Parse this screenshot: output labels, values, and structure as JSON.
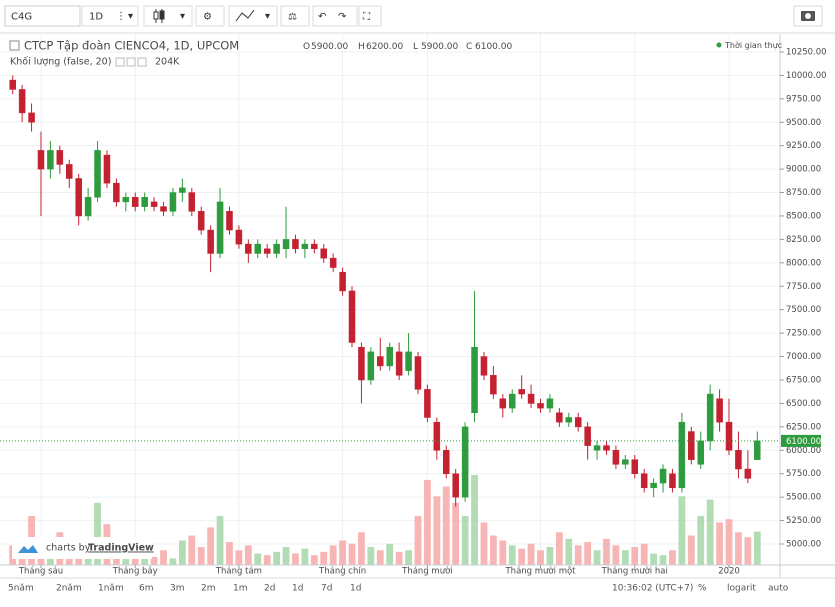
{
  "toolbar": {
    "symbol": "C4G",
    "interval": "1D"
  },
  "header": {
    "title": "CTCP Tập đoàn CIENCO4, 1D, UPCOM",
    "o_key": "O",
    "o": "5900.00",
    "h_key": "H",
    "h": "6200.00",
    "l_key": "L",
    "l": "5900.00",
    "c_key": "C",
    "c": "6100.00",
    "volume_title": "Khối lượng (false, 20)",
    "volume_label": "204K",
    "realtime": "Thời gian thực"
  },
  "watermark": {
    "prefix": "charts by",
    "brand": "TradingView"
  },
  "bottom": {
    "ranges": [
      "5năm",
      "2năm",
      "1năm",
      "6m",
      "3m",
      "2m",
      "1m",
      "2d",
      "1d",
      "7d",
      "1d"
    ],
    "time": "10:36:02 (UTC+7)",
    "percent": "%",
    "log": "logarit",
    "auto": "auto"
  },
  "chart_data": {
    "type": "candlestick",
    "up_color": "#2e9b3e",
    "down_color": "#c42131",
    "volume_up_color": "#a5d6a7",
    "volume_down_color": "#f7a8a8",
    "grid": true,
    "price_label": "6100.00",
    "ylim": [
      4776,
      10399
    ],
    "yticks": [
      {
        "value": 5000,
        "label": "5000.00"
      },
      {
        "value": 5250,
        "label": "5250.00"
      },
      {
        "value": 5500,
        "label": "5500.00"
      },
      {
        "value": 5750,
        "label": "5750.00"
      },
      {
        "value": 6000,
        "label": "6000.00"
      },
      {
        "value": 6250,
        "label": "6250.00"
      },
      {
        "value": 6500,
        "label": "6500.00"
      },
      {
        "value": 6750,
        "label": "6750.00"
      },
      {
        "value": 7000,
        "label": "7000.00"
      },
      {
        "value": 7250,
        "label": "7250.00"
      },
      {
        "value": 7500,
        "label": "7500.00"
      },
      {
        "value": 7750,
        "label": "7750.00"
      },
      {
        "value": 8000,
        "label": "8000.00"
      },
      {
        "value": 8250,
        "label": "8250.00"
      },
      {
        "value": 8500,
        "label": "8500.00"
      },
      {
        "value": 8750,
        "label": "8750.00"
      },
      {
        "value": 9000,
        "label": "9000.00"
      },
      {
        "value": 9250,
        "label": "9250.00"
      },
      {
        "value": 9500,
        "label": "9500.00"
      },
      {
        "value": 9750,
        "label": "9750.00"
      },
      {
        "value": 10000,
        "label": "10000.00"
      },
      {
        "value": 10250,
        "label": "10250.00"
      }
    ],
    "xticks": [
      {
        "value": 3,
        "label": "Tháng sáu"
      },
      {
        "value": 13,
        "label": "Tháng bảy"
      },
      {
        "value": 24,
        "label": "Tháng tám"
      },
      {
        "value": 35,
        "label": "Tháng chín"
      },
      {
        "value": 44,
        "label": "Tháng mười"
      },
      {
        "value": 56,
        "label": "Tháng mười một"
      },
      {
        "value": 66,
        "label": "Tháng mười hai"
      },
      {
        "value": 76,
        "label": "2020"
      }
    ],
    "ohlc": [
      [
        9950,
        10000,
        9800,
        9850
      ],
      [
        9850,
        9900,
        9500,
        9600
      ],
      [
        9600,
        9700,
        9400,
        9500
      ],
      [
        9200,
        9400,
        8500,
        9000
      ],
      [
        9000,
        9300,
        8900,
        9200
      ],
      [
        9200,
        9250,
        8950,
        9050
      ],
      [
        9050,
        9100,
        8800,
        8900
      ],
      [
        8900,
        8950,
        8400,
        8500
      ],
      [
        8500,
        8800,
        8450,
        8700
      ],
      [
        8700,
        9300,
        8650,
        9200
      ],
      [
        9150,
        9200,
        8800,
        8850
      ],
      [
        8850,
        8900,
        8600,
        8650
      ],
      [
        8650,
        8750,
        8550,
        8700
      ],
      [
        8700,
        8750,
        8550,
        8600
      ],
      [
        8600,
        8750,
        8550,
        8700
      ],
      [
        8650,
        8700,
        8550,
        8600
      ],
      [
        8600,
        8650,
        8500,
        8550
      ],
      [
        8550,
        8800,
        8500,
        8750
      ],
      [
        8750,
        8900,
        8650,
        8800
      ],
      [
        8750,
        8800,
        8500,
        8550
      ],
      [
        8550,
        8600,
        8300,
        8350
      ],
      [
        8350,
        8400,
        7900,
        8100
      ],
      [
        8100,
        8800,
        8050,
        8650
      ],
      [
        8550,
        8600,
        8300,
        8350
      ],
      [
        8350,
        8400,
        8150,
        8200
      ],
      [
        8200,
        8250,
        8000,
        8100
      ],
      [
        8100,
        8250,
        8050,
        8200
      ],
      [
        8150,
        8200,
        8050,
        8100
      ],
      [
        8100,
        8250,
        8050,
        8200
      ],
      [
        8150,
        8600,
        8050,
        8250
      ],
      [
        8250,
        8300,
        8100,
        8150
      ],
      [
        8150,
        8250,
        8050,
        8200
      ],
      [
        8200,
        8250,
        8100,
        8150
      ],
      [
        8150,
        8200,
        8000,
        8050
      ],
      [
        8050,
        8100,
        7900,
        7950
      ],
      [
        7900,
        7950,
        7650,
        7700
      ],
      [
        7700,
        7750,
        7100,
        7150
      ],
      [
        7100,
        7150,
        6500,
        6750
      ],
      [
        6750,
        7100,
        6700,
        7050
      ],
      [
        7000,
        7200,
        6850,
        6900
      ],
      [
        6900,
        7150,
        6850,
        7100
      ],
      [
        7050,
        7150,
        6750,
        6800
      ],
      [
        6850,
        7250,
        6800,
        7050
      ],
      [
        7000,
        7050,
        6600,
        6650
      ],
      [
        6650,
        6700,
        6300,
        6350
      ],
      [
        6300,
        6350,
        5900,
        6000
      ],
      [
        6000,
        6050,
        5700,
        5750
      ],
      [
        5750,
        5800,
        5400,
        5500
      ],
      [
        5500,
        6300,
        5450,
        6250
      ],
      [
        6400,
        7700,
        6300,
        7100
      ],
      [
        7000,
        7050,
        6750,
        6800
      ],
      [
        6800,
        6900,
        6550,
        6600
      ],
      [
        6550,
        6600,
        6350,
        6450
      ],
      [
        6450,
        6650,
        6400,
        6600
      ],
      [
        6650,
        6800,
        6550,
        6600
      ],
      [
        6600,
        6700,
        6450,
        6500
      ],
      [
        6500,
        6550,
        6400,
        6450
      ],
      [
        6450,
        6600,
        6400,
        6550
      ],
      [
        6400,
        6450,
        6250,
        6300
      ],
      [
        6300,
        6400,
        6250,
        6350
      ],
      [
        6350,
        6400,
        6200,
        6250
      ],
      [
        6250,
        6300,
        5900,
        6050
      ],
      [
        6000,
        6100,
        5900,
        6050
      ],
      [
        6050,
        6100,
        5950,
        6000
      ],
      [
        6000,
        6050,
        5800,
        5850
      ],
      [
        5850,
        5950,
        5800,
        5900
      ],
      [
        5900,
        5950,
        5700,
        5750
      ],
      [
        5750,
        5800,
        5550,
        5600
      ],
      [
        5600,
        5700,
        5500,
        5650
      ],
      [
        5650,
        5850,
        5550,
        5800
      ],
      [
        5750,
        5800,
        5550,
        5600
      ],
      [
        5600,
        6400,
        5550,
        6300
      ],
      [
        6200,
        6250,
        5850,
        5900
      ],
      [
        5850,
        6200,
        5800,
        6100
      ],
      [
        6100,
        6700,
        6000,
        6600
      ],
      [
        6550,
        6650,
        6200,
        6300
      ],
      [
        6300,
        6550,
        5950,
        6000
      ],
      [
        6000,
        6200,
        5700,
        5800
      ],
      [
        5800,
        6000,
        5650,
        5700
      ],
      [
        5900,
        6200,
        5900,
        6100
      ]
    ],
    "volume": [
      120000,
      80000,
      300000,
      150000,
      90000,
      200000,
      60000,
      100000,
      130000,
      380000,
      250000,
      90000,
      70000,
      140000,
      60000,
      50000,
      90000,
      40000,
      150000,
      180000,
      110000,
      230000,
      300000,
      140000,
      90000,
      120000,
      70000,
      60000,
      80000,
      110000,
      70000,
      100000,
      60000,
      80000,
      120000,
      150000,
      130000,
      200000,
      110000,
      90000,
      130000,
      80000,
      90000,
      300000,
      520000,
      420000,
      480000,
      380000,
      300000,
      550000,
      260000,
      180000,
      150000,
      120000,
      100000,
      130000,
      90000,
      110000,
      200000,
      160000,
      120000,
      140000,
      90000,
      160000,
      120000,
      90000,
      110000,
      130000,
      70000,
      60000,
      90000,
      420000,
      180000,
      300000,
      400000,
      260000,
      280000,
      200000,
      170000,
      204000
    ]
  }
}
